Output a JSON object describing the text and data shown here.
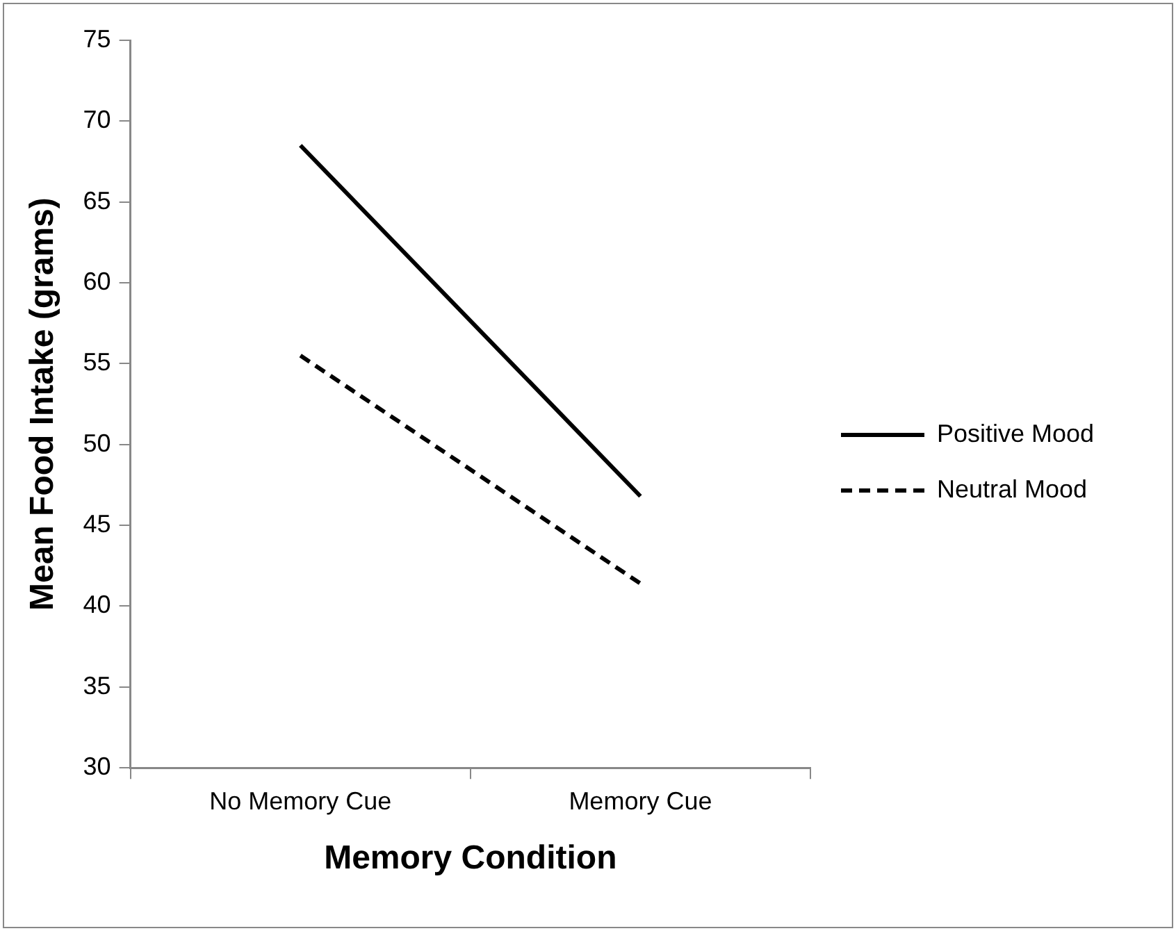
{
  "chart_data": {
    "type": "line",
    "xlabel": "Memory Condition",
    "ylabel": "Mean Food Intake (grams)",
    "categories": [
      "No Memory Cue",
      "Memory Cue"
    ],
    "series": [
      {
        "name": "Positive Mood",
        "color": "#000000",
        "values": [
          68.5,
          46.8
        ],
        "line_style": "solid"
      },
      {
        "name": "Neutral Mood",
        "color": "#000000",
        "values": [
          55.5,
          41.4
        ],
        "line_style": "dashed"
      }
    ],
    "ylim": [
      30,
      75
    ],
    "yticks": [
      30,
      35,
      40,
      45,
      50,
      55,
      60,
      65,
      70,
      75
    ],
    "grid": false,
    "legend": "right",
    "marker": "none"
  }
}
